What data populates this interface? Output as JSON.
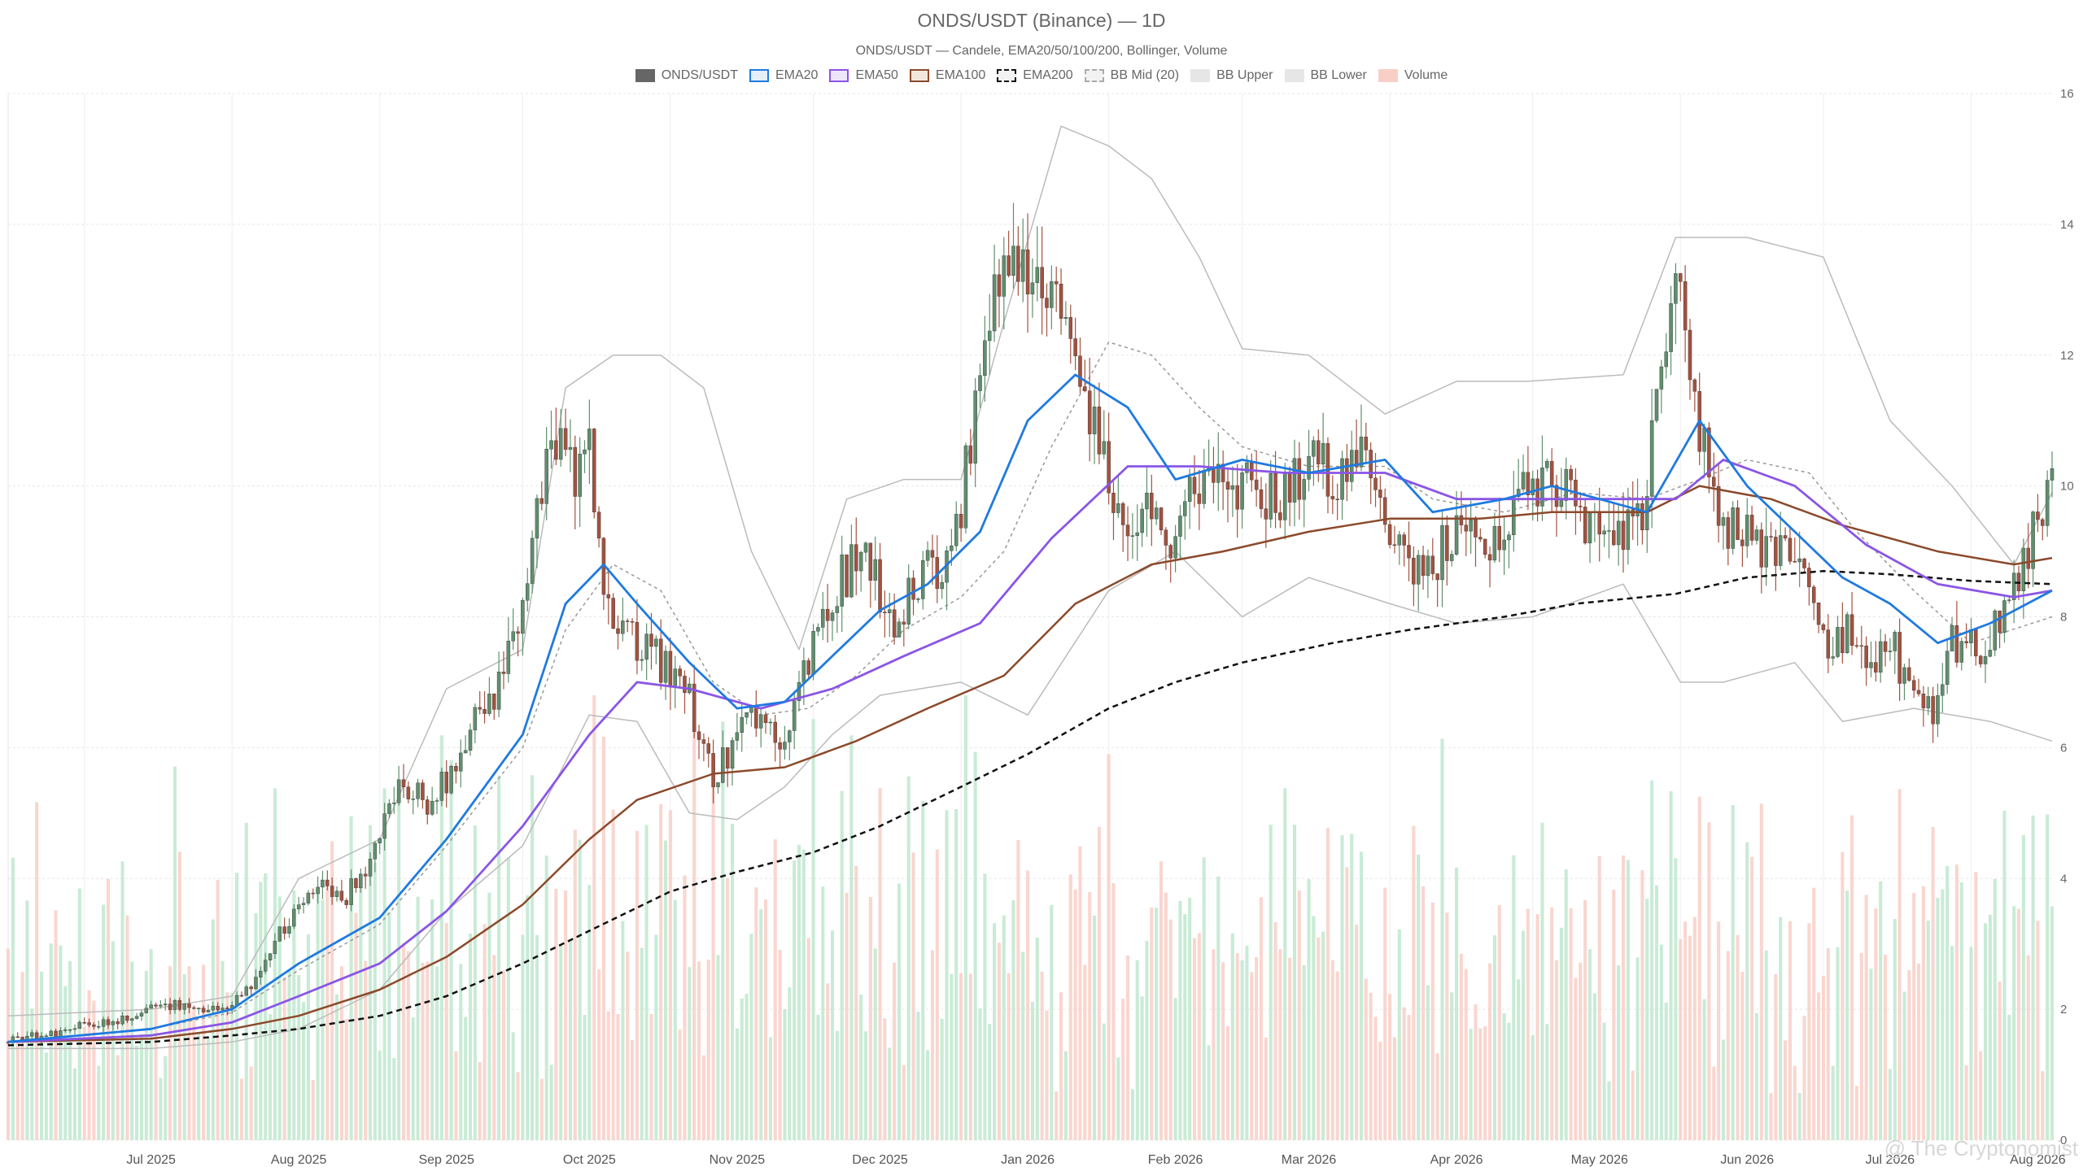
{
  "title": "ONDS/USDT (Binance) — 1D",
  "subtitle": "ONDS/USDT — Candele, EMA20/50/100/200, Bollinger, Volume",
  "watermark": "@ The Cryptonomist",
  "legend": [
    {
      "label": "ONDS/USDT",
      "fill": "#666666",
      "border": "#666666",
      "dash": false
    },
    {
      "label": "EMA20",
      "fill": "#e3eef9",
      "border": "#1f7ae0",
      "dash": false
    },
    {
      "label": "EMA50",
      "fill": "#eee5f9",
      "border": "#8a55e6",
      "dash": false
    },
    {
      "label": "EMA100",
      "fill": "#f3e7dd",
      "border": "#8b4a2b",
      "dash": false
    },
    {
      "label": "EMA200",
      "fill": "#f2f2f2",
      "border": "#111111",
      "dash": true
    },
    {
      "label": "BB Mid (20)",
      "fill": "#f2f2f2",
      "border": "#aaaaaa",
      "dash": true
    },
    {
      "label": "BB Upper",
      "fill": "#e6e6e6",
      "border": "#e6e6e6",
      "dash": false
    },
    {
      "label": "BB Lower",
      "fill": "#e6e6e6",
      "border": "#e6e6e6",
      "dash": false
    },
    {
      "label": "Volume",
      "fill": "#f8cfc7",
      "border": "#f8cfc7",
      "dash": false
    }
  ],
  "chart_data": {
    "type": "candlestick",
    "x_ticks": [
      "Jul 2025",
      "Aug 2025",
      "Sep 2025",
      "Oct 2025",
      "Nov 2025",
      "Dec 2025",
      "Jan 2026",
      "Feb 2026",
      "Mar 2026",
      "Apr 2026",
      "May 2026",
      "Jun 2026",
      "Jul 2026",
      "Aug 2026"
    ],
    "y_ticks": [
      0,
      2,
      4,
      6,
      8,
      10,
      12,
      14,
      16
    ],
    "ylim": [
      0,
      16
    ],
    "grid": true,
    "legend_position": "top-center",
    "colors": {
      "up": "#5f8f6d",
      "down": "#a3523f",
      "ema20": "#1f7ae0",
      "ema50": "#8a55e6",
      "ema100": "#8b4a2b",
      "ema200": "#111111",
      "bb_mid": "#999999",
      "bb_band": "#bbbbbb",
      "vol_up": "#bfe8cf",
      "vol_down": "#f8cfc7"
    },
    "close_path": [
      [
        "2025-06-15",
        1.5
      ],
      [
        "2025-06-25",
        1.65
      ],
      [
        "2025-07-05",
        1.8
      ],
      [
        "2025-07-20",
        2.1
      ],
      [
        "2025-07-31",
        1.95
      ],
      [
        "2025-08-06",
        2.5
      ],
      [
        "2025-08-12",
        3.3
      ],
      [
        "2025-08-18",
        3.9
      ],
      [
        "2025-08-25",
        3.7
      ],
      [
        "2025-09-01",
        4.6
      ],
      [
        "2025-09-06",
        5.5
      ],
      [
        "2025-09-12",
        5.1
      ],
      [
        "2025-09-18",
        6.0
      ],
      [
        "2025-09-25",
        6.8
      ],
      [
        "2025-10-01",
        8.0
      ],
      [
        "2025-10-05",
        10.0
      ],
      [
        "2025-10-09",
        11.0
      ],
      [
        "2025-10-12",
        10.2
      ],
      [
        "2025-10-15",
        10.6
      ],
      [
        "2025-10-18",
        8.5
      ],
      [
        "2025-10-22",
        7.7
      ],
      [
        "2025-10-26",
        7.5
      ],
      [
        "2025-10-30",
        7.3
      ],
      [
        "2025-11-05",
        6.7
      ],
      [
        "2025-11-10",
        5.5
      ],
      [
        "2025-11-15",
        6.2
      ],
      [
        "2025-11-20",
        6.5
      ],
      [
        "2025-11-25",
        6.0
      ],
      [
        "2025-11-30",
        7.4
      ],
      [
        "2025-12-05",
        8.4
      ],
      [
        "2025-12-12",
        9.0
      ],
      [
        "2025-12-18",
        7.9
      ],
      [
        "2025-12-24",
        8.7
      ],
      [
        "2025-12-30",
        8.9
      ],
      [
        "2026-01-04",
        11.0
      ],
      [
        "2026-01-08",
        13.0
      ],
      [
        "2026-01-12",
        13.5
      ],
      [
        "2026-01-16",
        12.9
      ],
      [
        "2026-01-20",
        12.8
      ],
      [
        "2026-01-25",
        11.7
      ],
      [
        "2026-01-30",
        10.5
      ],
      [
        "2026-02-04",
        9.3
      ],
      [
        "2026-02-10",
        9.7
      ],
      [
        "2026-02-15",
        9.1
      ],
      [
        "2026-02-22",
        10.5
      ],
      [
        "2026-03-01",
        10.0
      ],
      [
        "2026-03-08",
        9.8
      ],
      [
        "2026-03-15",
        10.4
      ],
      [
        "2026-03-22",
        10.1
      ],
      [
        "2026-03-28",
        10.5
      ],
      [
        "2026-04-02",
        9.1
      ],
      [
        "2026-04-08",
        8.6
      ],
      [
        "2026-04-15",
        9.4
      ],
      [
        "2026-04-22",
        9.0
      ],
      [
        "2026-04-30",
        10.0
      ],
      [
        "2026-05-07",
        10.1
      ],
      [
        "2026-05-12",
        9.3
      ],
      [
        "2026-05-18",
        9.0
      ],
      [
        "2026-05-24",
        9.6
      ],
      [
        "2026-05-28",
        11.5
      ],
      [
        "2026-06-01",
        13.2
      ],
      [
        "2026-06-05",
        11.0
      ],
      [
        "2026-06-10",
        9.5
      ],
      [
        "2026-06-18",
        9.1
      ],
      [
        "2026-06-26",
        8.9
      ],
      [
        "2026-07-02",
        7.5
      ],
      [
        "2026-07-06",
        7.9
      ],
      [
        "2026-07-10",
        7.3
      ],
      [
        "2026-07-16",
        7.5
      ],
      [
        "2026-07-20",
        6.7
      ],
      [
        "2026-07-24",
        6.6
      ],
      [
        "2026-07-28",
        7.6
      ],
      [
        "2026-08-04",
        7.5
      ],
      [
        "2026-08-10",
        8.4
      ],
      [
        "2026-08-14",
        9.2
      ],
      [
        "2026-08-17",
        9.9
      ]
    ],
    "ema20": [
      [
        "2025-06-15",
        1.5
      ],
      [
        "2025-07-15",
        1.7
      ],
      [
        "2025-08-01",
        2.0
      ],
      [
        "2025-08-15",
        2.7
      ],
      [
        "2025-09-01",
        3.4
      ],
      [
        "2025-09-15",
        4.6
      ],
      [
        "2025-10-01",
        6.2
      ],
      [
        "2025-10-10",
        8.2
      ],
      [
        "2025-10-18",
        8.8
      ],
      [
        "2025-10-25",
        8.2
      ],
      [
        "2025-11-05",
        7.3
      ],
      [
        "2025-11-15",
        6.6
      ],
      [
        "2025-11-25",
        6.7
      ],
      [
        "2025-12-05",
        7.4
      ],
      [
        "2025-12-15",
        8.1
      ],
      [
        "2025-12-25",
        8.5
      ],
      [
        "2026-01-05",
        9.3
      ],
      [
        "2026-01-15",
        11.0
      ],
      [
        "2026-01-25",
        11.7
      ],
      [
        "2026-02-05",
        11.2
      ],
      [
        "2026-02-15",
        10.1
      ],
      [
        "2026-03-01",
        10.4
      ],
      [
        "2026-03-15",
        10.2
      ],
      [
        "2026-03-31",
        10.4
      ],
      [
        "2026-04-10",
        9.6
      ],
      [
        "2026-04-25",
        9.8
      ],
      [
        "2026-05-05",
        10.0
      ],
      [
        "2026-05-15",
        9.8
      ],
      [
        "2026-05-25",
        9.6
      ],
      [
        "2026-06-05",
        11.0
      ],
      [
        "2026-06-15",
        10.0
      ],
      [
        "2026-06-25",
        9.3
      ],
      [
        "2026-07-05",
        8.6
      ],
      [
        "2026-07-15",
        8.2
      ],
      [
        "2026-07-25",
        7.6
      ],
      [
        "2026-08-05",
        7.9
      ],
      [
        "2026-08-18",
        8.4
      ]
    ],
    "ema50": [
      [
        "2025-06-15",
        1.5
      ],
      [
        "2025-07-15",
        1.6
      ],
      [
        "2025-08-01",
        1.8
      ],
      [
        "2025-08-15",
        2.2
      ],
      [
        "2025-09-01",
        2.7
      ],
      [
        "2025-09-15",
        3.5
      ],
      [
        "2025-10-01",
        4.8
      ],
      [
        "2025-10-15",
        6.2
      ],
      [
        "2025-10-25",
        7.0
      ],
      [
        "2025-11-05",
        6.9
      ],
      [
        "2025-11-20",
        6.6
      ],
      [
        "2025-12-05",
        6.9
      ],
      [
        "2025-12-20",
        7.4
      ],
      [
        "2026-01-05",
        7.9
      ],
      [
        "2026-01-20",
        9.2
      ],
      [
        "2026-02-05",
        10.3
      ],
      [
        "2026-02-20",
        10.3
      ],
      [
        "2026-03-10",
        10.2
      ],
      [
        "2026-03-31",
        10.2
      ],
      [
        "2026-04-15",
        9.8
      ],
      [
        "2026-05-01",
        9.8
      ],
      [
        "2026-05-15",
        9.8
      ],
      [
        "2026-05-31",
        9.8
      ],
      [
        "2026-06-10",
        10.4
      ],
      [
        "2026-06-25",
        10.0
      ],
      [
        "2026-07-10",
        9.1
      ],
      [
        "2026-07-25",
        8.5
      ],
      [
        "2026-08-10",
        8.3
      ],
      [
        "2026-08-18",
        8.4
      ]
    ],
    "ema100": [
      [
        "2025-06-15",
        1.5
      ],
      [
        "2025-07-15",
        1.55
      ],
      [
        "2025-08-01",
        1.7
      ],
      [
        "2025-08-15",
        1.9
      ],
      [
        "2025-09-01",
        2.3
      ],
      [
        "2025-09-15",
        2.8
      ],
      [
        "2025-10-01",
        3.6
      ],
      [
        "2025-10-15",
        4.6
      ],
      [
        "2025-10-25",
        5.2
      ],
      [
        "2025-11-10",
        5.6
      ],
      [
        "2025-11-25",
        5.7
      ],
      [
        "2025-12-10",
        6.1
      ],
      [
        "2025-12-25",
        6.6
      ],
      [
        "2026-01-10",
        7.1
      ],
      [
        "2026-01-25",
        8.2
      ],
      [
        "2026-02-10",
        8.8
      ],
      [
        "2026-02-25",
        9.0
      ],
      [
        "2026-03-15",
        9.3
      ],
      [
        "2026-04-01",
        9.5
      ],
      [
        "2026-04-20",
        9.5
      ],
      [
        "2026-05-05",
        9.6
      ],
      [
        "2026-05-25",
        9.6
      ],
      [
        "2026-06-05",
        10.0
      ],
      [
        "2026-06-20",
        9.8
      ],
      [
        "2026-07-05",
        9.4
      ],
      [
        "2026-07-25",
        9.0
      ],
      [
        "2026-08-10",
        8.8
      ],
      [
        "2026-08-18",
        8.9
      ]
    ],
    "ema200": [
      [
        "2025-06-15",
        1.45
      ],
      [
        "2025-07-15",
        1.5
      ],
      [
        "2025-08-01",
        1.6
      ],
      [
        "2025-08-15",
        1.7
      ],
      [
        "2025-09-01",
        1.9
      ],
      [
        "2025-09-15",
        2.2
      ],
      [
        "2025-10-01",
        2.7
      ],
      [
        "2025-10-15",
        3.2
      ],
      [
        "2025-11-01",
        3.8
      ],
      [
        "2025-11-15",
        4.1
      ],
      [
        "2025-12-01",
        4.4
      ],
      [
        "2025-12-15",
        4.8
      ],
      [
        "2026-01-01",
        5.4
      ],
      [
        "2026-01-15",
        5.9
      ],
      [
        "2026-02-01",
        6.6
      ],
      [
        "2026-02-15",
        7.0
      ],
      [
        "2026-03-01",
        7.3
      ],
      [
        "2026-03-20",
        7.6
      ],
      [
        "2026-04-05",
        7.8
      ],
      [
        "2026-04-25",
        8.0
      ],
      [
        "2026-05-10",
        8.2
      ],
      [
        "2026-05-31",
        8.35
      ],
      [
        "2026-06-15",
        8.6
      ],
      [
        "2026-07-01",
        8.7
      ],
      [
        "2026-07-15",
        8.65
      ],
      [
        "2026-08-01",
        8.55
      ],
      [
        "2026-08-18",
        8.5
      ]
    ],
    "bb_mid": [
      [
        "2025-06-15",
        1.5
      ],
      [
        "2025-07-15",
        1.7
      ],
      [
        "2025-08-01",
        1.95
      ],
      [
        "2025-08-15",
        2.6
      ],
      [
        "2025-09-01",
        3.3
      ],
      [
        "2025-09-15",
        4.5
      ],
      [
        "2025-10-01",
        6.0
      ],
      [
        "2025-10-10",
        7.8
      ],
      [
        "2025-10-20",
        8.8
      ],
      [
        "2025-10-30",
        8.4
      ],
      [
        "2025-11-10",
        7.0
      ],
      [
        "2025-11-20",
        6.5
      ],
      [
        "2025-11-30",
        6.6
      ],
      [
        "2025-12-10",
        7.1
      ],
      [
        "2025-12-20",
        7.8
      ],
      [
        "2026-01-01",
        8.3
      ],
      [
        "2026-01-10",
        9.0
      ],
      [
        "2026-01-20",
        10.6
      ],
      [
        "2026-02-01",
        12.2
      ],
      [
        "2026-02-10",
        12.0
      ],
      [
        "2026-02-20",
        11.2
      ],
      [
        "2026-03-01",
        10.6
      ],
      [
        "2026-03-15",
        10.3
      ],
      [
        "2026-03-31",
        10.3
      ],
      [
        "2026-04-10",
        9.8
      ],
      [
        "2026-04-25",
        9.6
      ],
      [
        "2026-05-10",
        9.9
      ],
      [
        "2026-05-25",
        9.8
      ],
      [
        "2026-06-05",
        10.1
      ],
      [
        "2026-06-15",
        10.4
      ],
      [
        "2026-06-28",
        10.2
      ],
      [
        "2026-07-08",
        9.3
      ],
      [
        "2026-07-20",
        8.4
      ],
      [
        "2026-08-01",
        7.6
      ],
      [
        "2026-08-18",
        8.0
      ]
    ],
    "bb_upper": [
      [
        "2025-06-15",
        1.9
      ],
      [
        "2025-07-15",
        2.0
      ],
      [
        "2025-08-01",
        2.2
      ],
      [
        "2025-08-15",
        4.0
      ],
      [
        "2025-09-01",
        4.6
      ],
      [
        "2025-09-15",
        6.9
      ],
      [
        "2025-10-01",
        7.5
      ],
      [
        "2025-10-10",
        11.5
      ],
      [
        "2025-10-20",
        12.0
      ],
      [
        "2025-10-30",
        12.0
      ],
      [
        "2025-11-08",
        11.5
      ],
      [
        "2025-11-18",
        9.0
      ],
      [
        "2025-11-28",
        7.5
      ],
      [
        "2025-12-08",
        9.8
      ],
      [
        "2025-12-20",
        10.1
      ],
      [
        "2026-01-01",
        10.1
      ],
      [
        "2026-01-10",
        12.5
      ],
      [
        "2026-01-22",
        15.5
      ],
      [
        "2026-02-01",
        15.2
      ],
      [
        "2026-02-10",
        14.7
      ],
      [
        "2026-02-20",
        13.5
      ],
      [
        "2026-03-01",
        12.1
      ],
      [
        "2026-03-15",
        12.0
      ],
      [
        "2026-03-31",
        11.1
      ],
      [
        "2026-04-15",
        11.6
      ],
      [
        "2026-04-30",
        11.6
      ],
      [
        "2026-05-20",
        11.7
      ],
      [
        "2026-05-31",
        13.8
      ],
      [
        "2026-06-15",
        13.8
      ],
      [
        "2026-07-01",
        13.5
      ],
      [
        "2026-07-15",
        11.0
      ],
      [
        "2026-07-28",
        10.0
      ],
      [
        "2026-08-10",
        8.8
      ],
      [
        "2026-08-18",
        9.9
      ]
    ],
    "bb_lower": [
      [
        "2025-06-15",
        1.4
      ],
      [
        "2025-07-15",
        1.4
      ],
      [
        "2025-08-01",
        1.5
      ],
      [
        "2025-08-15",
        1.7
      ],
      [
        "2025-09-01",
        2.3
      ],
      [
        "2025-09-15",
        3.5
      ],
      [
        "2025-10-01",
        4.5
      ],
      [
        "2025-10-15",
        6.5
      ],
      [
        "2025-10-25",
        6.4
      ],
      [
        "2025-11-05",
        5.0
      ],
      [
        "2025-11-15",
        4.9
      ],
      [
        "2025-11-25",
        5.4
      ],
      [
        "2025-12-05",
        6.2
      ],
      [
        "2025-12-15",
        6.8
      ],
      [
        "2026-01-01",
        7.0
      ],
      [
        "2026-01-15",
        6.5
      ],
      [
        "2026-02-01",
        8.4
      ],
      [
        "2026-02-15",
        9.0
      ],
      [
        "2026-03-01",
        8.0
      ],
      [
        "2026-03-15",
        8.6
      ],
      [
        "2026-04-01",
        8.2
      ],
      [
        "2026-04-15",
        7.9
      ],
      [
        "2026-05-01",
        8.0
      ],
      [
        "2026-05-20",
        8.5
      ],
      [
        "2026-06-01",
        7.0
      ],
      [
        "2026-06-10",
        7.0
      ],
      [
        "2026-06-25",
        7.3
      ],
      [
        "2026-07-05",
        6.4
      ],
      [
        "2026-07-20",
        6.6
      ],
      [
        "2026-08-05",
        6.4
      ],
      [
        "2026-08-18",
        6.1
      ]
    ]
  }
}
